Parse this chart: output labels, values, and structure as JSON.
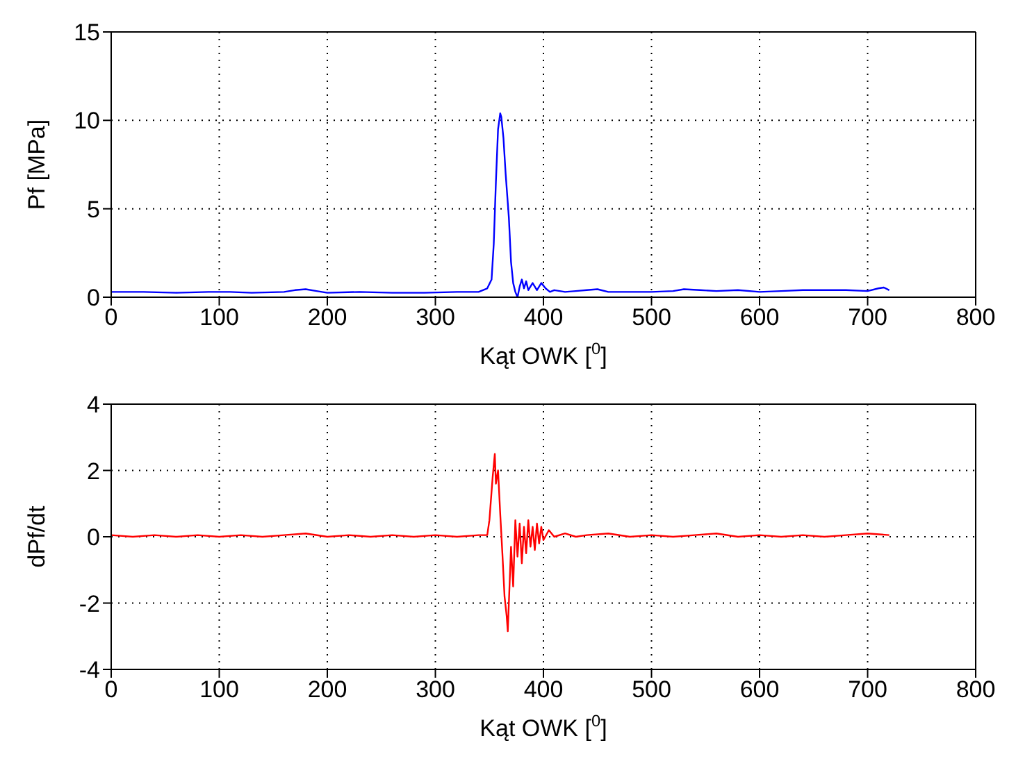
{
  "chart_data": [
    {
      "type": "line",
      "xlabel": "Kąt OWK [$^{0}$]",
      "ylabel": "Pf [MPa]",
      "xlim": [
        0,
        800
      ],
      "xticks": [
        0,
        100,
        200,
        300,
        400,
        500,
        600,
        700,
        800
      ],
      "ylim": [
        0,
        15
      ],
      "yticks": [
        0,
        5,
        10,
        15
      ],
      "grid": true,
      "series": [
        {
          "color": "#0000ff",
          "x": [
            0,
            30,
            60,
            90,
            110,
            130,
            160,
            170,
            180,
            190,
            200,
            230,
            260,
            290,
            320,
            340,
            348,
            352,
            354,
            356,
            358,
            360,
            361,
            363,
            365,
            368,
            370,
            372,
            374,
            376,
            378,
            380,
            382,
            384,
            386,
            388,
            390,
            394,
            398,
            402,
            406,
            410,
            420,
            430,
            440,
            450,
            460,
            480,
            500,
            520,
            530,
            545,
            560,
            580,
            600,
            620,
            640,
            660,
            680,
            700,
            710,
            715,
            720
          ],
          "values": [
            0.3,
            0.3,
            0.25,
            0.3,
            0.3,
            0.25,
            0.3,
            0.4,
            0.45,
            0.35,
            0.25,
            0.3,
            0.25,
            0.25,
            0.3,
            0.3,
            0.5,
            1.0,
            3.0,
            6.5,
            9.5,
            10.4,
            10.2,
            9.0,
            7.0,
            4.5,
            2.0,
            0.8,
            0.3,
            0.0,
            0.6,
            1.0,
            0.5,
            0.9,
            0.4,
            0.6,
            0.8,
            0.4,
            0.8,
            0.5,
            0.3,
            0.4,
            0.3,
            0.35,
            0.4,
            0.45,
            0.3,
            0.3,
            0.3,
            0.35,
            0.45,
            0.4,
            0.35,
            0.4,
            0.3,
            0.35,
            0.4,
            0.4,
            0.4,
            0.35,
            0.5,
            0.55,
            0.4
          ]
        }
      ]
    },
    {
      "type": "line",
      "xlabel": "Kąt OWK [$^{0}$]",
      "ylabel": "dPf/dt",
      "xlim": [
        0,
        800
      ],
      "xticks": [
        0,
        100,
        200,
        300,
        400,
        500,
        600,
        700,
        800
      ],
      "ylim": [
        -4,
        4
      ],
      "yticks": [
        -4,
        -2,
        0,
        2,
        4
      ],
      "grid": true,
      "series": [
        {
          "color": "#ff0000",
          "x": [
            0,
            20,
            40,
            60,
            80,
            100,
            120,
            140,
            160,
            180,
            200,
            220,
            240,
            260,
            280,
            300,
            320,
            340,
            348,
            350,
            353,
            355,
            356,
            358,
            360,
            362,
            364,
            366,
            367,
            368,
            370,
            372,
            374,
            376,
            378,
            380,
            382,
            384,
            386,
            388,
            390,
            392,
            394,
            396,
            398,
            400,
            405,
            410,
            420,
            430,
            440,
            460,
            480,
            500,
            520,
            540,
            560,
            580,
            600,
            620,
            640,
            660,
            680,
            700,
            720
          ],
          "values": [
            0.05,
            0.0,
            0.05,
            0.0,
            0.05,
            0.0,
            0.05,
            0.0,
            0.05,
            0.1,
            0.0,
            0.05,
            0.0,
            0.05,
            0.0,
            0.05,
            0.0,
            0.05,
            0.05,
            0.5,
            1.8,
            2.5,
            1.6,
            2.0,
            0.7,
            -0.5,
            -1.8,
            -2.4,
            -2.85,
            -2.0,
            -0.3,
            -1.5,
            0.5,
            -0.6,
            0.4,
            -0.8,
            0.3,
            -0.5,
            0.5,
            -0.3,
            0.3,
            -0.4,
            0.4,
            -0.2,
            0.3,
            -0.1,
            0.2,
            0.0,
            0.1,
            0.0,
            0.05,
            0.1,
            0.0,
            0.05,
            0.0,
            0.05,
            0.1,
            0.0,
            0.05,
            0.0,
            0.05,
            0.0,
            0.05,
            0.1,
            0.05
          ]
        }
      ]
    }
  ]
}
